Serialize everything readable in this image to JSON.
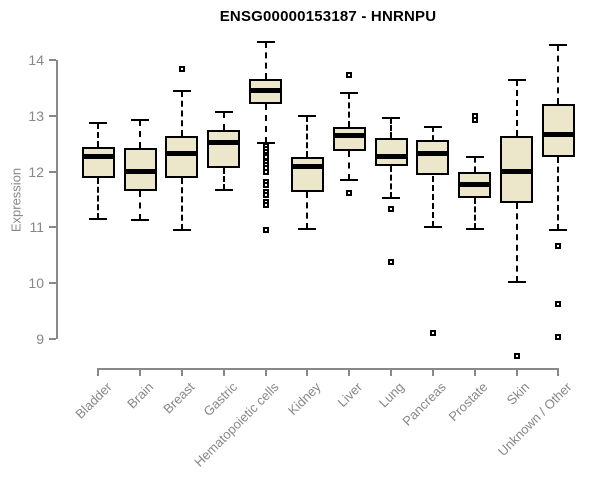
{
  "chart_data": {
    "type": "boxplot",
    "title": "ENSG00000153187 - HNRNPU",
    "ylabel": "Expression",
    "xlabel": "",
    "grid": false,
    "legend": null,
    "y_axis": {
      "min": 9,
      "max": 14,
      "ticks": [
        14,
        13,
        12,
        11,
        10,
        9
      ]
    },
    "categories": [
      "Bladder",
      "Brain",
      "Breast",
      "Gastric",
      "Hematopoietic cells",
      "Kidney",
      "Liver",
      "Lung",
      "Pancreas",
      "Prostate",
      "Skin",
      "Unknown / Other"
    ],
    "boxes": [
      {
        "category": "Bladder",
        "whisker_low": 11.15,
        "q1": 11.88,
        "median": 12.27,
        "q3": 12.44,
        "whisker_high": 12.87,
        "outliers": []
      },
      {
        "category": "Brain",
        "whisker_low": 11.13,
        "q1": 11.66,
        "median": 12.0,
        "q3": 12.42,
        "whisker_high": 12.93,
        "outliers": []
      },
      {
        "category": "Breast",
        "whisker_low": 10.95,
        "q1": 11.88,
        "median": 12.33,
        "q3": 12.64,
        "whisker_high": 13.45,
        "outliers": [
          13.84
        ]
      },
      {
        "category": "Gastric",
        "whisker_low": 11.67,
        "q1": 12.06,
        "median": 12.53,
        "q3": 12.75,
        "whisker_high": 13.07,
        "outliers": []
      },
      {
        "category": "Hematopoietic cells",
        "whisker_low": 12.51,
        "q1": 13.21,
        "median": 13.46,
        "q3": 13.66,
        "whisker_high": 14.32,
        "outliers": [
          12.45,
          12.4,
          12.35,
          12.3,
          12.26,
          12.18,
          12.12,
          12.06,
          12.0,
          11.82,
          11.76,
          11.64,
          11.58,
          11.46,
          11.4,
          10.95
        ]
      },
      {
        "category": "Kidney",
        "whisker_low": 10.97,
        "q1": 11.64,
        "median": 12.1,
        "q3": 12.27,
        "whisker_high": 13.0,
        "outliers": []
      },
      {
        "category": "Liver",
        "whisker_low": 11.85,
        "q1": 12.37,
        "median": 12.64,
        "q3": 12.8,
        "whisker_high": 13.4,
        "outliers": [
          13.74,
          11.61
        ]
      },
      {
        "category": "Lung",
        "whisker_low": 11.52,
        "q1": 12.1,
        "median": 12.27,
        "q3": 12.6,
        "whisker_high": 12.96,
        "outliers": [
          11.33,
          10.38
        ]
      },
      {
        "category": "Pancreas",
        "whisker_low": 11.01,
        "q1": 11.93,
        "median": 12.33,
        "q3": 12.57,
        "whisker_high": 12.8,
        "outliers": [
          9.11
        ]
      },
      {
        "category": "Prostate",
        "whisker_low": 10.97,
        "q1": 11.53,
        "median": 11.77,
        "q3": 12.0,
        "whisker_high": 12.27,
        "outliers": [
          12.99,
          12.92
        ]
      },
      {
        "category": "Skin",
        "whisker_low": 10.03,
        "q1": 11.43,
        "median": 12.0,
        "q3": 12.63,
        "whisker_high": 13.64,
        "outliers": [
          8.7
        ]
      },
      {
        "category": "Unknown / Other",
        "whisker_low": 10.95,
        "q1": 12.26,
        "median": 12.66,
        "q3": 13.21,
        "whisker_high": 14.27,
        "outliers": [
          10.67,
          9.63,
          9.03
        ]
      }
    ],
    "colors": {
      "box_fill": "#ECE7CB",
      "box_border": "#000000",
      "median": "#000000",
      "whisker": "#000000",
      "outlier_border": "#000000",
      "outlier_fill": "#FFFFFF",
      "axis": "#888888",
      "tick_label": "#878787",
      "title": "#000000",
      "background": "#FFFFFF"
    }
  }
}
